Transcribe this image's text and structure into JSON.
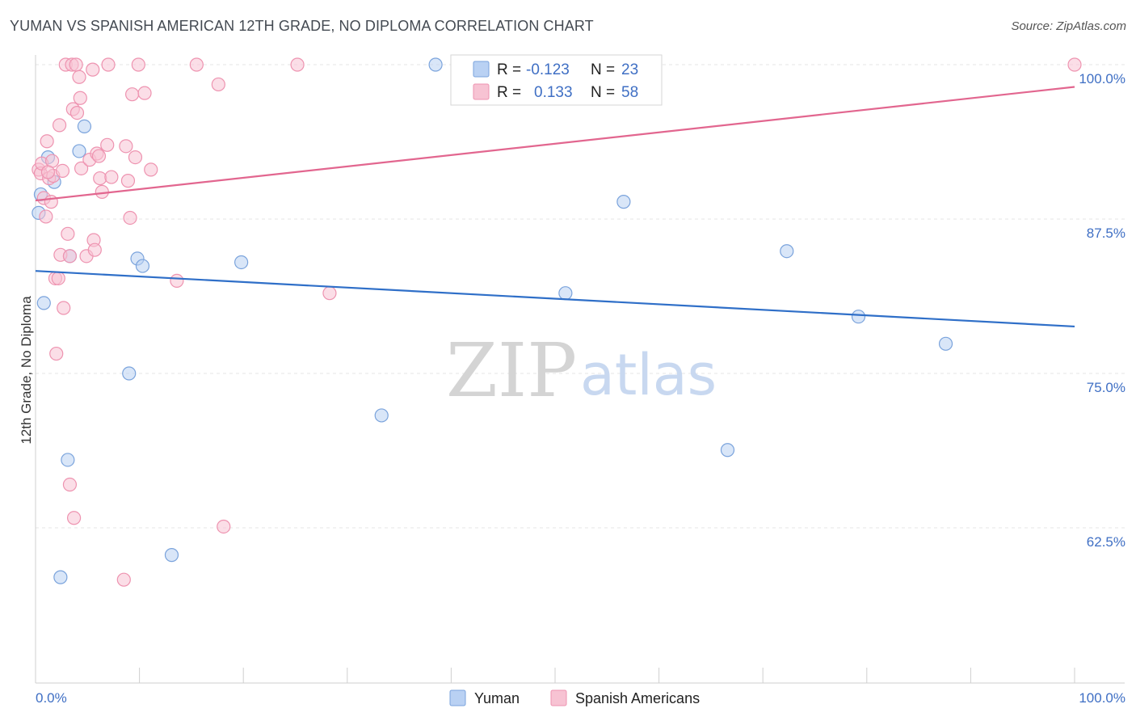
{
  "title": "YUMAN VS SPANISH AMERICAN 12TH GRADE, NO DIPLOMA CORRELATION CHART",
  "source": "Source: ZipAtlas.com",
  "colors": {
    "yuman_fill": "#b9d1f3",
    "yuman_stroke": "#7aa3dc",
    "yuman_line": "#2f6fc8",
    "spanish_fill": "#f7c3d3",
    "spanish_stroke": "#ee93b0",
    "spanish_line": "#e2668f",
    "grid": "#e6e6e6",
    "tick_text": "#3f6fc4"
  },
  "watermark": {
    "zip": "ZIP",
    "atlas": "atlas"
  },
  "legend": {
    "rows": [
      {
        "series": "Yuman",
        "r_label": "R =",
        "r_value": "-0.123",
        "n_label": "N =",
        "n_value": "23"
      },
      {
        "series": "Spanish Americans",
        "r_label": "R =",
        "r_value": "0.133",
        "n_label": "N =",
        "n_value": "58"
      }
    ]
  },
  "chart_data": {
    "type": "scatter",
    "title": "YUMAN VS SPANISH AMERICAN 12TH GRADE, NO DIPLOMA CORRELATION CHART",
    "xlabel": "",
    "ylabel": "12th Grade, No Diploma",
    "xlim": [
      0,
      100
    ],
    "ylim": [
      50,
      101
    ],
    "x_tick_labels": [
      "0.0%",
      "100.0%"
    ],
    "y_ticks": [
      62.5,
      75.0,
      87.5,
      100.0
    ],
    "y_tick_labels": [
      "62.5%",
      "75.0%",
      "87.5%",
      "100.0%"
    ],
    "legend_placement": "top-center",
    "series": [
      {
        "name": "Yuman",
        "trend": {
          "x": [
            0,
            100
          ],
          "y": [
            83.3,
            78.8
          ]
        },
        "points": [
          {
            "x": 0.3,
            "y": 88.0
          },
          {
            "x": 0.5,
            "y": 89.5
          },
          {
            "x": 1.2,
            "y": 92.5
          },
          {
            "x": 1.8,
            "y": 90.5
          },
          {
            "x": 2.4,
            "y": 58.5
          },
          {
            "x": 3.1,
            "y": 68.0
          },
          {
            "x": 3.3,
            "y": 84.5
          },
          {
            "x": 4.2,
            "y": 93.0
          },
          {
            "x": 4.7,
            "y": 95.0
          },
          {
            "x": 9.0,
            "y": 75.0
          },
          {
            "x": 9.8,
            "y": 84.3
          },
          {
            "x": 10.3,
            "y": 83.7
          },
          {
            "x": 13.1,
            "y": 60.3
          },
          {
            "x": 19.8,
            "y": 84.0
          },
          {
            "x": 33.3,
            "y": 71.6
          },
          {
            "x": 38.5,
            "y": 100.0
          },
          {
            "x": 51.0,
            "y": 81.5
          },
          {
            "x": 56.6,
            "y": 88.9
          },
          {
            "x": 66.6,
            "y": 68.8
          },
          {
            "x": 72.3,
            "y": 84.9
          },
          {
            "x": 79.2,
            "y": 79.6
          },
          {
            "x": 87.6,
            "y": 77.4
          },
          {
            "x": 0.8,
            "y": 80.7
          }
        ]
      },
      {
        "name": "Spanish Americans",
        "trend": {
          "x": [
            0,
            100
          ],
          "y": [
            89.0,
            98.2
          ]
        },
        "points": [
          {
            "x": 0.3,
            "y": 91.5
          },
          {
            "x": 0.5,
            "y": 91.2
          },
          {
            "x": 0.6,
            "y": 92.0
          },
          {
            "x": 0.8,
            "y": 89.2
          },
          {
            "x": 1.0,
            "y": 87.7
          },
          {
            "x": 1.1,
            "y": 93.8
          },
          {
            "x": 1.3,
            "y": 90.8
          },
          {
            "x": 1.5,
            "y": 88.9
          },
          {
            "x": 1.6,
            "y": 92.2
          },
          {
            "x": 1.7,
            "y": 91.0
          },
          {
            "x": 1.9,
            "y": 82.7
          },
          {
            "x": 2.0,
            "y": 76.6
          },
          {
            "x": 2.3,
            "y": 95.1
          },
          {
            "x": 2.4,
            "y": 84.6
          },
          {
            "x": 2.6,
            "y": 91.4
          },
          {
            "x": 2.7,
            "y": 80.3
          },
          {
            "x": 2.9,
            "y": 100.0
          },
          {
            "x": 3.1,
            "y": 86.3
          },
          {
            "x": 3.3,
            "y": 84.5
          },
          {
            "x": 3.3,
            "y": 66.0
          },
          {
            "x": 3.5,
            "y": 100.0
          },
          {
            "x": 3.6,
            "y": 96.4
          },
          {
            "x": 3.7,
            "y": 63.3
          },
          {
            "x": 3.9,
            "y": 100.0
          },
          {
            "x": 4.0,
            "y": 96.1
          },
          {
            "x": 4.2,
            "y": 99.0
          },
          {
            "x": 4.4,
            "y": 91.6
          },
          {
            "x": 4.3,
            "y": 97.3
          },
          {
            "x": 4.9,
            "y": 84.5
          },
          {
            "x": 5.2,
            "y": 92.3
          },
          {
            "x": 5.5,
            "y": 99.6
          },
          {
            "x": 5.6,
            "y": 85.8
          },
          {
            "x": 5.7,
            "y": 85.0
          },
          {
            "x": 5.9,
            "y": 92.8
          },
          {
            "x": 6.1,
            "y": 92.6
          },
          {
            "x": 6.2,
            "y": 90.8
          },
          {
            "x": 6.4,
            "y": 89.7
          },
          {
            "x": 6.9,
            "y": 93.5
          },
          {
            "x": 7.0,
            "y": 100.0
          },
          {
            "x": 7.3,
            "y": 90.9
          },
          {
            "x": 8.5,
            "y": 58.3
          },
          {
            "x": 8.7,
            "y": 93.4
          },
          {
            "x": 8.9,
            "y": 90.6
          },
          {
            "x": 9.1,
            "y": 87.6
          },
          {
            "x": 9.3,
            "y": 97.6
          },
          {
            "x": 9.6,
            "y": 92.5
          },
          {
            "x": 9.9,
            "y": 100.0
          },
          {
            "x": 10.5,
            "y": 97.7
          },
          {
            "x": 11.1,
            "y": 91.5
          },
          {
            "x": 13.6,
            "y": 82.5
          },
          {
            "x": 15.5,
            "y": 100.0
          },
          {
            "x": 17.6,
            "y": 98.4
          },
          {
            "x": 18.1,
            "y": 62.6
          },
          {
            "x": 25.2,
            "y": 100.0
          },
          {
            "x": 28.3,
            "y": 81.5
          },
          {
            "x": 100.0,
            "y": 100.0
          },
          {
            "x": 2.2,
            "y": 82.7
          },
          {
            "x": 1.2,
            "y": 91.3
          }
        ]
      }
    ]
  }
}
